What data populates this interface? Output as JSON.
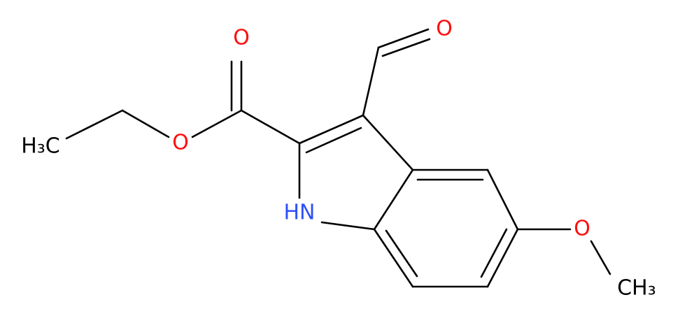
{
  "atoms": [
    {
      "label": "O"
    },
    {
      "label": "O"
    },
    {
      "label": "O"
    },
    {
      "label": "H₃C"
    },
    {
      "label": "HN"
    },
    {
      "label": "O"
    },
    {
      "label": "CH₃"
    }
  ]
}
